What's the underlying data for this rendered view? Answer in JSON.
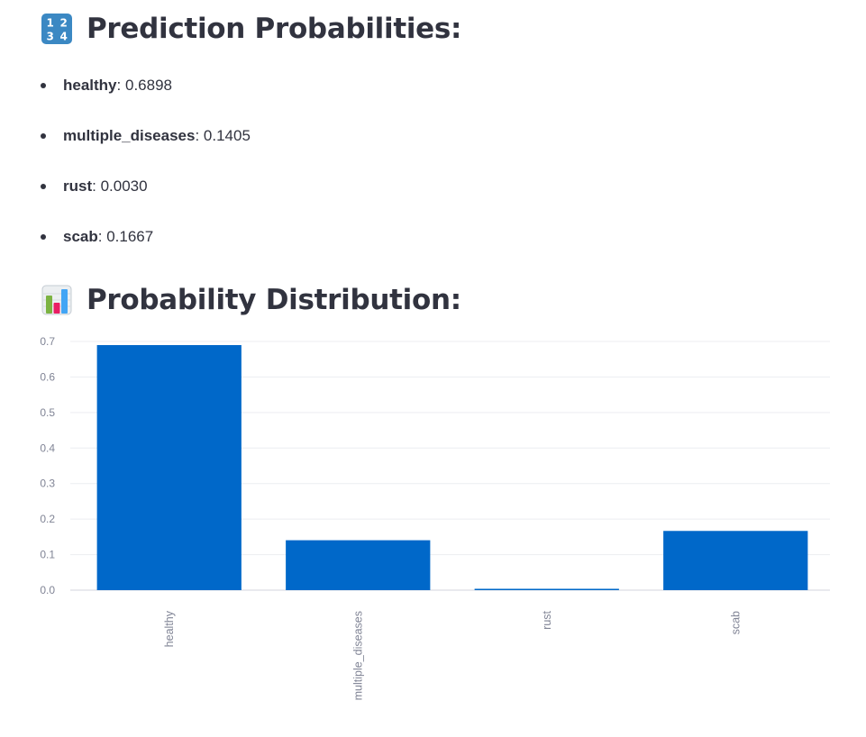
{
  "prediction": {
    "title": "Prediction Probabilities:",
    "icon": "input-numbers-icon",
    "items": [
      {
        "name": "healthy",
        "value": "0.6898"
      },
      {
        "name": "multiple_diseases",
        "value": "0.1405"
      },
      {
        "name": "rust",
        "value": "0.0030"
      },
      {
        "name": "scab",
        "value": "0.1667"
      }
    ]
  },
  "distribution": {
    "title": "Probability Distribution:",
    "icon": "bar-chart-icon"
  },
  "chart_data": {
    "type": "bar",
    "categories": [
      "healthy",
      "multiple_diseases",
      "rust",
      "scab"
    ],
    "values": [
      0.6898,
      0.1405,
      0.003,
      0.1667
    ],
    "title": "",
    "xlabel": "",
    "ylabel": "",
    "ylim": [
      0,
      0.7
    ],
    "yticks": [
      "0.0",
      "0.1",
      "0.2",
      "0.3",
      "0.4",
      "0.5",
      "0.6",
      "0.7"
    ],
    "grid": true,
    "legend": "none",
    "bar_color": "#0068c9"
  }
}
